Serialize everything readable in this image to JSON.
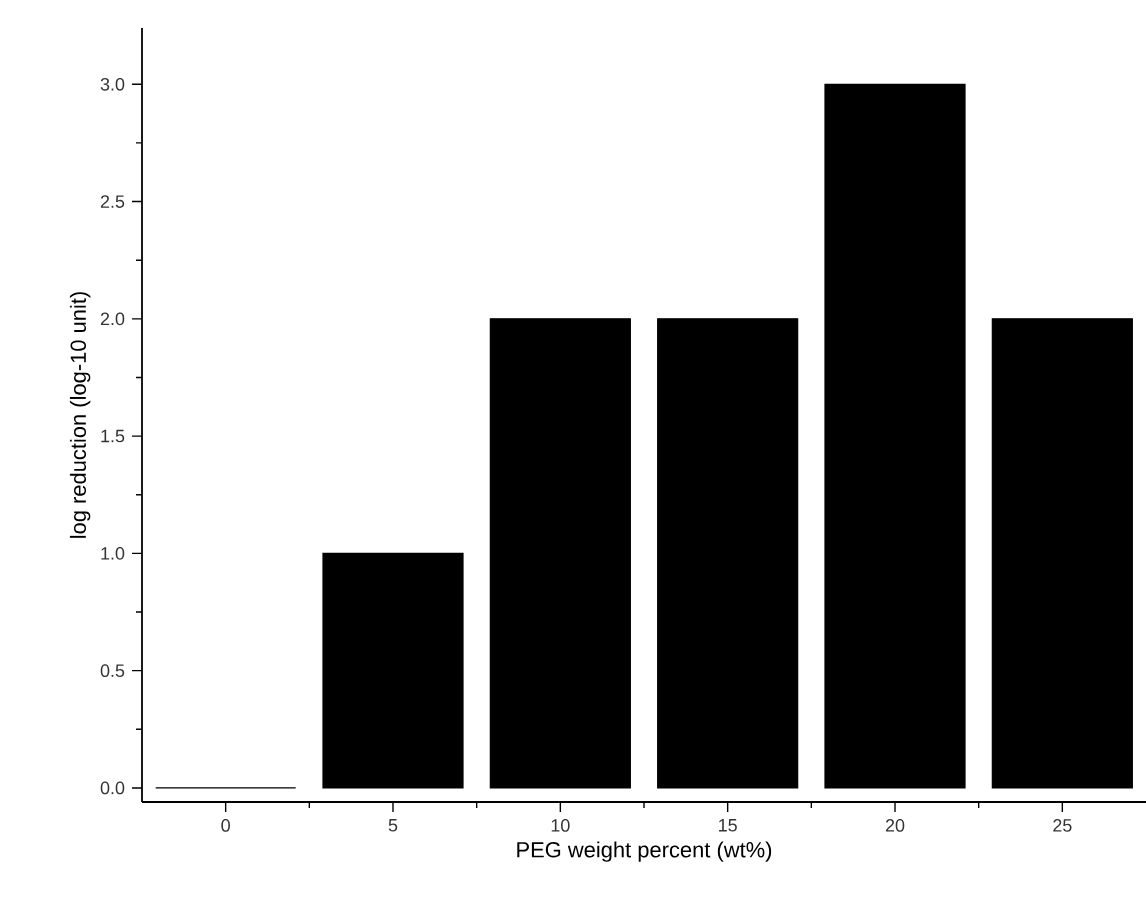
{
  "chart_data": {
    "type": "bar",
    "xlabel": "PEG weight percent (wt%)",
    "ylabel": "log reduction (log-10 unit)",
    "categories": [
      "0",
      "5",
      "10",
      "15",
      "20",
      "25"
    ],
    "values": [
      0,
      1,
      2,
      2,
      3,
      2
    ],
    "color": "#000000",
    "ylim": [
      -0.06,
      3.24
    ],
    "yticks": [
      {
        "value": 0,
        "label": "0.0"
      },
      {
        "value": 0.5,
        "label": "0.5"
      },
      {
        "value": 1,
        "label": "1.0"
      },
      {
        "value": 1.5,
        "label": "1.5"
      },
      {
        "value": 2,
        "label": "2.0"
      },
      {
        "value": 2.5,
        "label": "2.5"
      },
      {
        "value": 3,
        "label": "3.0"
      }
    ],
    "grid": false
  }
}
